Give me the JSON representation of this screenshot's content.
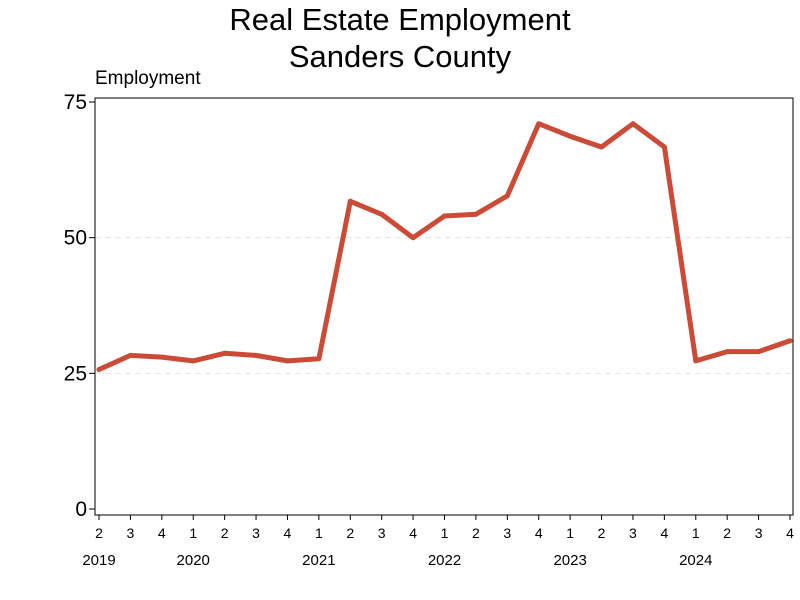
{
  "chart_data": {
    "type": "line",
    "title": "Real Estate Employment",
    "subtitle": "Sanders County",
    "ylabel": "Employment",
    "xlabel": "",
    "ylim": [
      0,
      75
    ],
    "yticks": [
      0,
      25,
      50,
      75
    ],
    "grid": true,
    "line_color": "#cc4b37",
    "x": [
      {
        "quarter": "2",
        "year": "2019"
      },
      {
        "quarter": "3",
        "year": ""
      },
      {
        "quarter": "4",
        "year": ""
      },
      {
        "quarter": "1",
        "year": "2020"
      },
      {
        "quarter": "2",
        "year": ""
      },
      {
        "quarter": "3",
        "year": ""
      },
      {
        "quarter": "4",
        "year": ""
      },
      {
        "quarter": "1",
        "year": "2021"
      },
      {
        "quarter": "2",
        "year": ""
      },
      {
        "quarter": "3",
        "year": ""
      },
      {
        "quarter": "4",
        "year": ""
      },
      {
        "quarter": "1",
        "year": "2022"
      },
      {
        "quarter": "2",
        "year": ""
      },
      {
        "quarter": "3",
        "year": ""
      },
      {
        "quarter": "4",
        "year": ""
      },
      {
        "quarter": "1",
        "year": "2023"
      },
      {
        "quarter": "2",
        "year": ""
      },
      {
        "quarter": "3",
        "year": ""
      },
      {
        "quarter": "4",
        "year": ""
      },
      {
        "quarter": "1",
        "year": "2024"
      },
      {
        "quarter": "2",
        "year": ""
      },
      {
        "quarter": "3",
        "year": ""
      },
      {
        "quarter": "4",
        "year": ""
      }
    ],
    "values": [
      25.7,
      28.3,
      28.0,
      27.3,
      28.7,
      28.3,
      27.3,
      27.7,
      56.7,
      54.3,
      50.0,
      54.0,
      54.3,
      57.7,
      71.0,
      68.7,
      66.7,
      71.0,
      66.7,
      27.3,
      29.0,
      29.0,
      31.0
    ]
  }
}
